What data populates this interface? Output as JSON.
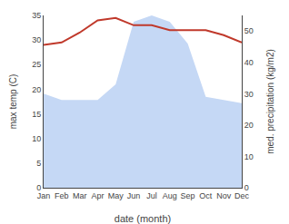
{
  "chart_data": {
    "type": "line",
    "xlabel": "date (month)",
    "ylabel": "max temp (C)",
    "y2label": "med. precipitation (kg/m2)",
    "categories": [
      "Jan",
      "Feb",
      "Mar",
      "Apr",
      "May",
      "Jun",
      "Jul",
      "Aug",
      "Sep",
      "Oct",
      "Nov",
      "Dec"
    ],
    "series": [
      {
        "type": "area",
        "axis": "y2",
        "color": "#c5d8f5",
        "values": [
          30,
          28,
          28,
          28,
          33,
          53,
          55,
          53,
          46,
          29,
          28,
          27
        ]
      },
      {
        "type": "line",
        "color": "#c0392b",
        "values": [
          29,
          29.5,
          31.5,
          34,
          34.5,
          33,
          33,
          32,
          32,
          32,
          31,
          29.5
        ]
      }
    ],
    "ylim": [
      0,
      35
    ],
    "yticks": [
      0,
      5,
      10,
      15,
      20,
      25,
      30,
      35
    ],
    "y2lim": [
      0,
      55
    ],
    "y2ticks": [
      0,
      10,
      20,
      30,
      40,
      50
    ],
    "grid": false
  }
}
